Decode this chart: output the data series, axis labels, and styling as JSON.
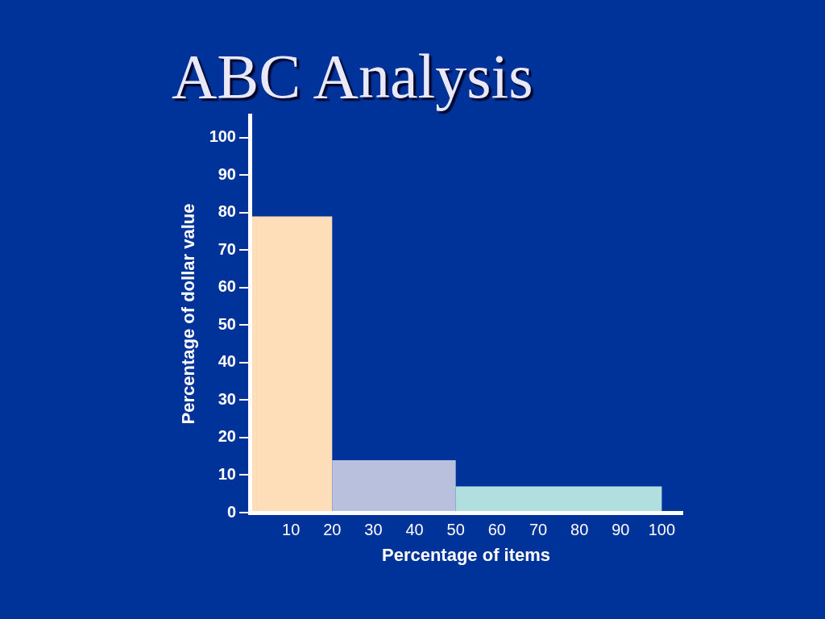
{
  "chart_data": {
    "type": "histogram",
    "title": "ABC Analysis",
    "xlabel": "Percentage of items",
    "ylabel": "Percentage of dollar value",
    "bins": [
      0,
      20,
      50,
      100
    ],
    "values": [
      79,
      14,
      7
    ],
    "colors": [
      "#fedeb8",
      "#b9c0de",
      "#b1dedf"
    ],
    "xlim": [
      0,
      105
    ],
    "xticks": [
      10,
      20,
      30,
      40,
      50,
      60,
      70,
      80,
      90,
      100
    ],
    "ylim": [
      0,
      106
    ],
    "yticks": [
      0,
      10,
      20,
      30,
      40,
      50,
      60,
      70,
      80,
      90,
      100
    ]
  }
}
